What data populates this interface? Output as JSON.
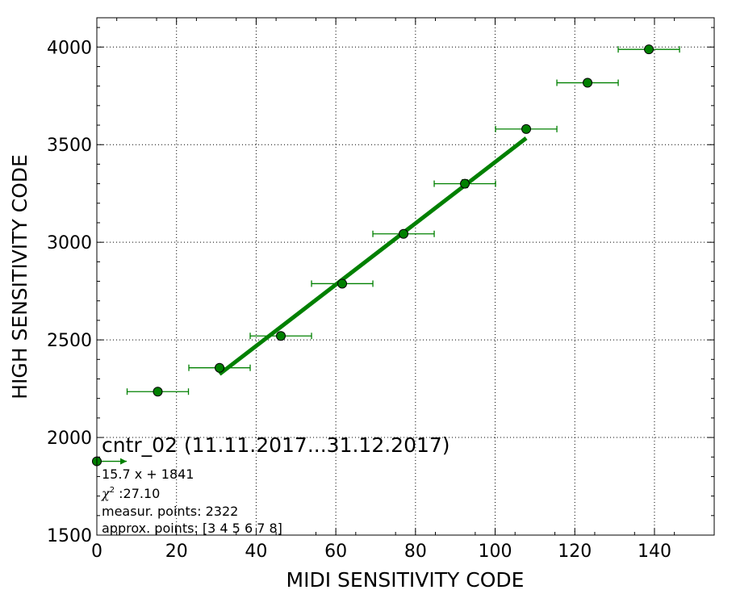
{
  "chart_data": {
    "type": "scatter",
    "xlabel": "MIDI SENSITIVITY CODE",
    "ylabel": "HIGH SENSITIVITY CODE",
    "xlim": [
      0,
      155
    ],
    "ylim": [
      1500,
      4150
    ],
    "x_ticks": [
      0,
      20,
      40,
      60,
      80,
      100,
      120,
      140
    ],
    "y_ticks": [
      1500,
      2000,
      2500,
      3000,
      3500,
      4000
    ],
    "grid": true,
    "grid_style": "dotted",
    "series_color": "#008000",
    "points": [
      {
        "x": 0,
        "y": 1878,
        "xerr_minus": 0,
        "xerr_plus": 7.5
      },
      {
        "x": 15.3,
        "y": 2235,
        "xerr": 7.7
      },
      {
        "x": 30.8,
        "y": 2357,
        "xerr": 7.7
      },
      {
        "x": 46.2,
        "y": 2520,
        "xerr": 7.7
      },
      {
        "x": 61.6,
        "y": 2788,
        "xerr": 7.7
      },
      {
        "x": 77.0,
        "y": 3043,
        "xerr": 7.7
      },
      {
        "x": 92.4,
        "y": 3300,
        "xerr": 7.7,
        "yerr": 20
      },
      {
        "x": 107.8,
        "y": 3580,
        "xerr": 7.7
      },
      {
        "x": 123.2,
        "y": 3817,
        "xerr": 7.7
      },
      {
        "x": 138.6,
        "y": 3988,
        "xerr": 7.7
      }
    ],
    "fit": {
      "slope": 15.7,
      "intercept": 1841,
      "x_range": [
        30.8,
        107.8
      ]
    },
    "annotations": {
      "title": "cntr_02 (11.11.2017...31.12.2017)",
      "equation": "15.7 x + 1841",
      "chi2_value": " :27.10",
      "measur": "measur. points: 2322",
      "approx": "approx. points: [3 4 5 6 7 8]"
    }
  }
}
